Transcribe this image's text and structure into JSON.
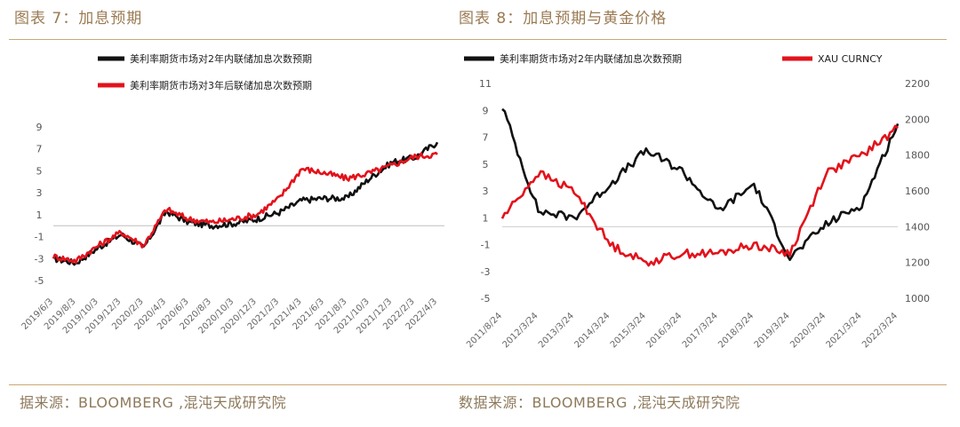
{
  "left": {
    "figure_title": "图表 7：加息预期",
    "source": "据来源：BLOOMBERG ,混沌天成研究院"
  },
  "right": {
    "figure_title": "图表 8：加息预期与黄金价格",
    "source": "数据来源：BLOOMBERG ,混沌天成研究院"
  },
  "chart_data": [
    {
      "type": "line",
      "title": "",
      "xlabel": "",
      "ylabel": "",
      "ylim": [
        -5,
        9
      ],
      "yticks": [
        -5,
        -3,
        -1,
        1,
        3,
        5,
        7,
        9
      ],
      "zero_line": 0,
      "x_ticks": [
        "2019/6/3",
        "2019/8/3",
        "2019/10/3",
        "2019/12/3",
        "2020/2/3",
        "2020/4/3",
        "2020/6/3",
        "2020/8/3",
        "2020/10/3",
        "2020/12/3",
        "2021/2/3",
        "2021/4/3",
        "2021/6/3",
        "2021/8/3",
        "2021/10/3",
        "2021/12/3",
        "2022/2/3",
        "2022/4/3"
      ],
      "x": [
        "2019/6/3",
        "2019/8/3",
        "2019/10/3",
        "2019/12/3",
        "2020/2/3",
        "2020/4/3",
        "2020/6/3",
        "2020/8/3",
        "2020/10/3",
        "2020/12/3",
        "2021/2/3",
        "2021/4/3",
        "2021/6/3",
        "2021/8/3",
        "2021/10/3",
        "2021/12/3",
        "2022/2/3",
        "2022/4/3"
      ],
      "series": [
        {
          "name": "美利率期货市场对2年内联储加息次数预期",
          "color": "#111111",
          "values": [
            -3.0,
            -3.4,
            -2.0,
            -0.8,
            -2.0,
            1.3,
            0.3,
            0.0,
            0.2,
            0.6,
            1.2,
            2.3,
            2.5,
            2.5,
            4.3,
            5.8,
            6.2,
            7.6
          ]
        },
        {
          "name": "美利率期货市场对3年后联储加息次数预期",
          "color": "#e3121b",
          "values": [
            -2.8,
            -3.2,
            -1.8,
            -0.6,
            -1.8,
            1.5,
            0.6,
            0.3,
            0.6,
            1.0,
            2.5,
            5.2,
            4.8,
            4.3,
            4.8,
            5.5,
            6.3,
            6.5
          ]
        }
      ],
      "legend": "top"
    },
    {
      "type": "line",
      "title": "",
      "xlabel": "",
      "ylabel": "",
      "ylim": [
        -5,
        11
      ],
      "yticks": [
        -5,
        -3,
        -1,
        1,
        3,
        5,
        7,
        9,
        11
      ],
      "y2lim": [
        1000,
        2200
      ],
      "y2ticks": [
        1000,
        1200,
        1400,
        1600,
        1800,
        2000,
        2200
      ],
      "reference_line_y2": 1400,
      "x_ticks": [
        "2011/8/24",
        "2012/3/24",
        "2013/3/24",
        "2014/3/24",
        "2015/3/24",
        "2016/3/24",
        "2017/3/24",
        "2018/3/24",
        "2019/3/24",
        "2020/3/24",
        "2021/3/24",
        "2022/3/24"
      ],
      "x": [
        "2011/8/24",
        "2012/3/24",
        "2013/3/24",
        "2014/3/24",
        "2015/3/24",
        "2016/3/24",
        "2017/3/24",
        "2018/3/24",
        "2019/3/24",
        "2020/3/24",
        "2021/3/24",
        "2022/3/24"
      ],
      "series": [
        {
          "name": "美利率期货市场对2年内联储加息次数预期",
          "axis": "left",
          "color": "#111111",
          "values": [
            9.3,
            1.5,
            1.0,
            3.5,
            6.0,
            4.5,
            1.5,
            3.5,
            -2.0,
            0.5,
            2.0,
            8.0
          ]
        },
        {
          "name": "XAU CURNCY",
          "axis": "right",
          "color": "#e3121b",
          "values": [
            1450,
            1700,
            1600,
            1300,
            1200,
            1250,
            1250,
            1300,
            1250,
            1700,
            1800,
            1950
          ]
        }
      ],
      "legend": "top"
    }
  ]
}
